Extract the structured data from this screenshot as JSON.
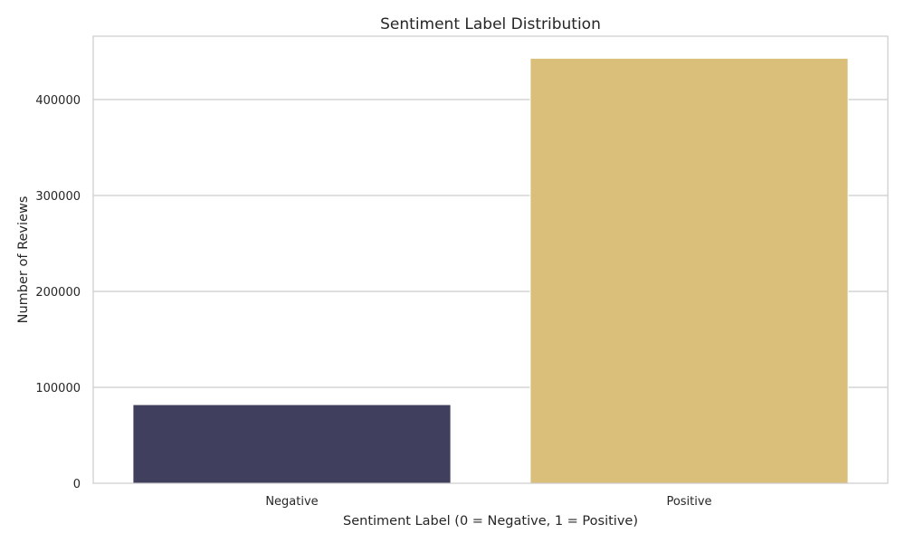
{
  "chart_data": {
    "type": "bar",
    "title": "Sentiment Label Distribution",
    "xlabel": "Sentiment Label (0 = Negative, 1 = Positive)",
    "ylabel": "Number of Reviews",
    "categories": [
      "Negative",
      "Positive"
    ],
    "values": [
      82000,
      443000
    ],
    "colors": [
      "#40405e",
      "#d9bf79"
    ],
    "ylim": [
      0,
      466000
    ],
    "yticks": [
      0,
      100000,
      200000,
      300000,
      400000
    ],
    "ytick_labels": [
      "0",
      "100000",
      "200000",
      "300000",
      "400000"
    ],
    "grid": true
  }
}
